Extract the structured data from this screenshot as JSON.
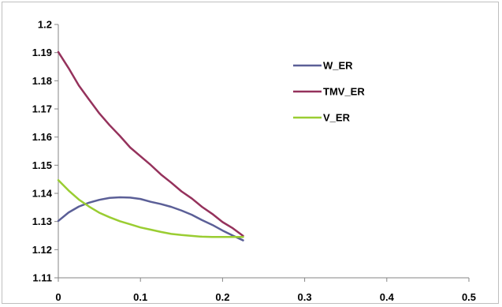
{
  "chart_data": {
    "type": "line",
    "title": "",
    "xlabel": "",
    "ylabel": "",
    "xlim": [
      0,
      0.5
    ],
    "ylim": [
      1.11,
      1.2
    ],
    "x_ticks": [
      0,
      0.1,
      0.2,
      0.3,
      0.4,
      0.5
    ],
    "y_ticks": [
      1.11,
      1.12,
      1.13,
      1.14,
      1.15,
      1.16,
      1.17,
      1.18,
      1.19,
      1.2
    ],
    "x_tick_labels": [
      "0",
      "0.1",
      "0.2",
      "0.3",
      "0.4",
      "0.5"
    ],
    "y_tick_labels": [
      "1.11",
      "1.12",
      "1.13",
      "1.14",
      "1.15",
      "1.16",
      "1.17",
      "1.18",
      "1.19",
      "1.2"
    ],
    "grid": false,
    "legend_position": "right",
    "series": [
      {
        "name": "W_ER",
        "color": "#5b5f97",
        "x": [
          0,
          0.0125,
          0.025,
          0.0375,
          0.05,
          0.0625,
          0.075,
          0.0875,
          0.1,
          0.1125,
          0.125,
          0.1375,
          0.15,
          0.1625,
          0.175,
          0.1875,
          0.2,
          0.2125,
          0.225
        ],
        "y": [
          1.1302,
          1.1332,
          1.1353,
          1.1367,
          1.1377,
          1.1384,
          1.1386,
          1.1385,
          1.138,
          1.137,
          1.1362,
          1.1352,
          1.1339,
          1.1324,
          1.1305,
          1.1288,
          1.1268,
          1.125,
          1.1233
        ]
      },
      {
        "name": "TMV_ER",
        "color": "#95325c",
        "x": [
          0,
          0.0125,
          0.025,
          0.0375,
          0.05,
          0.0625,
          0.075,
          0.0875,
          0.1,
          0.1125,
          0.125,
          0.1375,
          0.15,
          0.1625,
          0.175,
          0.1875,
          0.2,
          0.2125,
          0.225
        ],
        "y": [
          1.1902,
          1.1845,
          1.1783,
          1.1733,
          1.1684,
          1.1642,
          1.1604,
          1.1563,
          1.1532,
          1.1501,
          1.1467,
          1.1438,
          1.1407,
          1.1382,
          1.1352,
          1.1327,
          1.1298,
          1.1276,
          1.1249
        ]
      },
      {
        "name": "V_ER",
        "color": "#9acd32",
        "x": [
          0,
          0.0125,
          0.025,
          0.0375,
          0.05,
          0.0625,
          0.075,
          0.0875,
          0.1,
          0.1125,
          0.125,
          0.1375,
          0.15,
          0.1625,
          0.175,
          0.1875,
          0.2,
          0.2125,
          0.225
        ],
        "y": [
          1.1447,
          1.141,
          1.1378,
          1.1353,
          1.1331,
          1.1315,
          1.1301,
          1.129,
          1.1279,
          1.1271,
          1.1263,
          1.1256,
          1.1252,
          1.1249,
          1.1246,
          1.1245,
          1.1245,
          1.1245,
          1.1245
        ]
      }
    ]
  }
}
